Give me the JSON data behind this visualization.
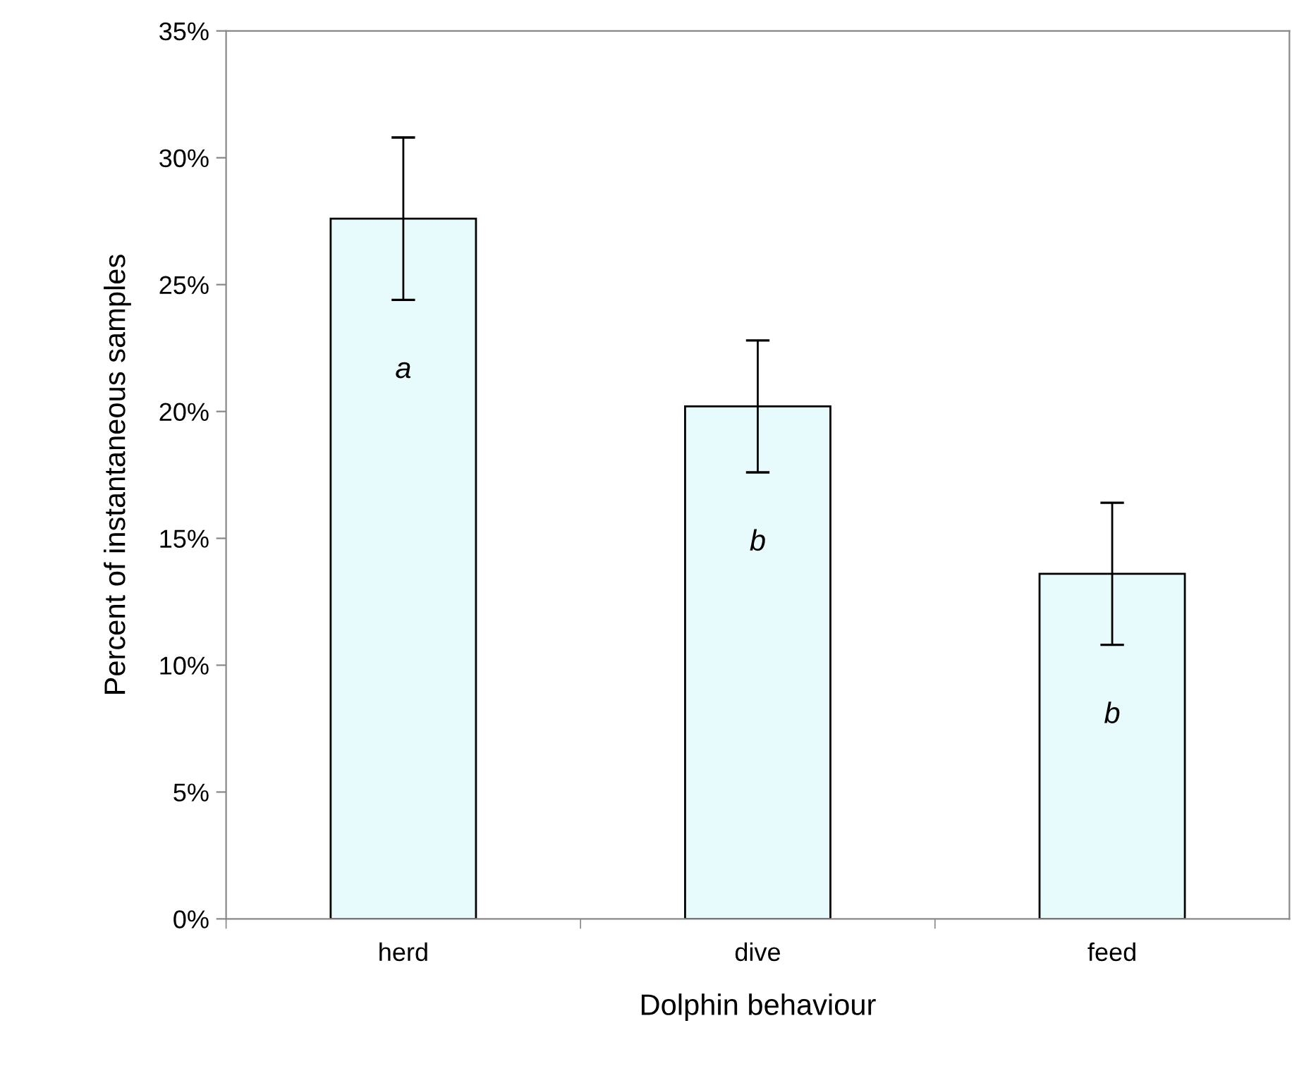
{
  "chart_data": {
    "type": "bar",
    "xlabel": "Dolphin behaviour",
    "ylabel": "Percent of instantaneous samples",
    "categories": [
      "herd",
      "dive",
      "feed"
    ],
    "values": [
      27.6,
      20.2,
      13.6
    ],
    "errors": [
      3.2,
      2.6,
      2.8
    ],
    "color": "#e8fbfc",
    "ylim": [
      0,
      35
    ],
    "yticks": [
      {
        "value": 0,
        "label": "0%"
      },
      {
        "value": 5,
        "label": "5%"
      },
      {
        "value": 10,
        "label": "10%"
      },
      {
        "value": 15,
        "label": "15%"
      },
      {
        "value": 20,
        "label": "20%"
      },
      {
        "value": 25,
        "label": "25%"
      },
      {
        "value": 30,
        "label": "30%"
      },
      {
        "value": 35,
        "label": "35%"
      }
    ],
    "grid": false,
    "annotations": [
      "a",
      "b",
      "b"
    ]
  }
}
